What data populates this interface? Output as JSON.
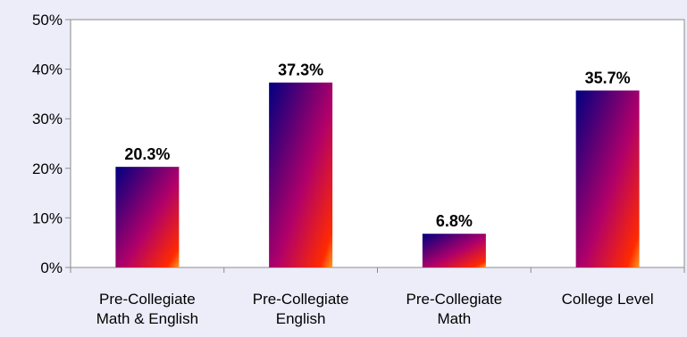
{
  "chart_data": {
    "type": "bar",
    "title": "",
    "xlabel": "",
    "ylabel": "",
    "ylim": [
      0,
      50
    ],
    "y_ticks": [
      0,
      10,
      20,
      30,
      40,
      50
    ],
    "y_tick_suffix": "%",
    "grid": false,
    "legend": "none",
    "categories": [
      [
        "Pre-Collegiate",
        "Math & English"
      ],
      [
        "Pre-Collegiate",
        "English"
      ],
      [
        "Pre-Collegiate",
        "Math"
      ],
      [
        "College Level"
      ]
    ],
    "values": [
      20.3,
      37.3,
      6.8,
      35.7
    ],
    "data_labels": [
      "20.3%",
      "37.3%",
      "6.8%",
      "35.7%"
    ]
  },
  "colors": {
    "background": "#ededfa",
    "plot_background": "#ffffff",
    "axis": "#8c8c8c",
    "bar_gradient_top_left": "#000080",
    "bar_gradient_mid": "#b0006a",
    "bar_gradient_bottom_right": "#ff2a00",
    "bar_gradient_corner": "#ff9a20"
  }
}
